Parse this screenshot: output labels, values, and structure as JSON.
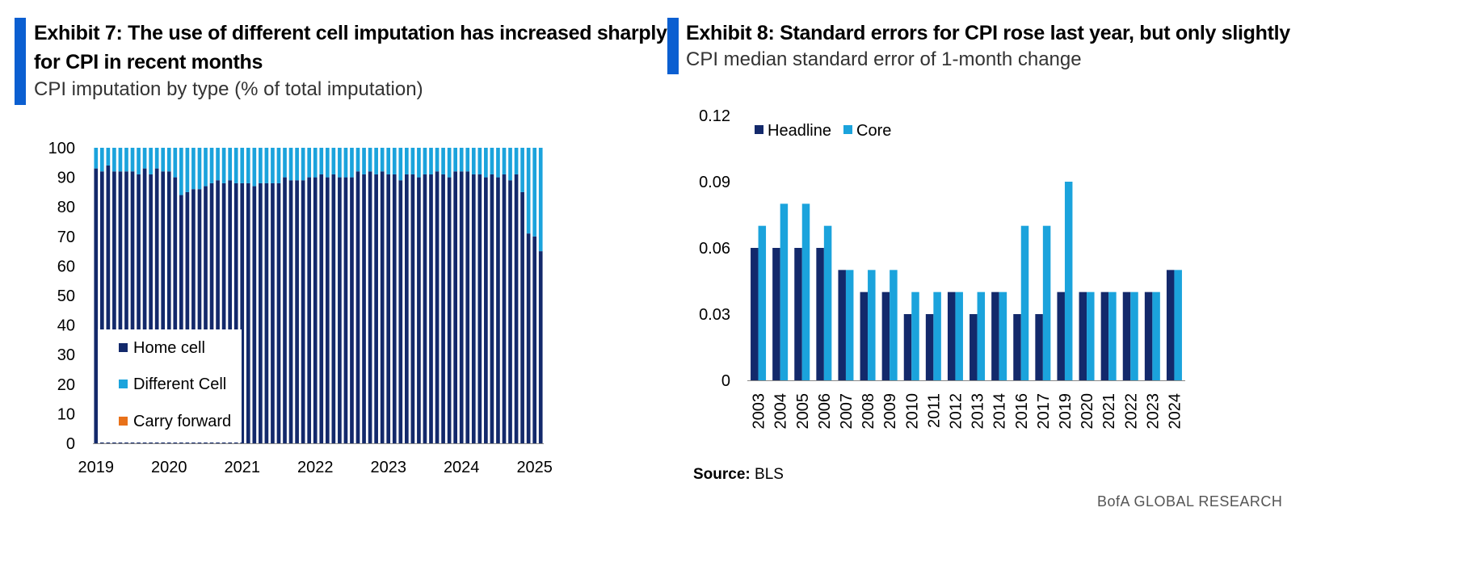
{
  "exhibit7": {
    "title_line1": "Exhibit 7: The use of different cell imputation has increased sharply",
    "title_line2": "for CPI in recent months",
    "subtitle": "CPI imputation by type (% of total imputation)"
  },
  "exhibit8": {
    "title": "Exhibit 8: Standard errors for CPI rose last year, but only slightly",
    "subtitle": "CPI median standard error of 1-month change"
  },
  "footer": {
    "source_label": "Source:",
    "source_value": "BLS",
    "brand": "BofA GLOBAL RESEARCH"
  },
  "colors": {
    "accent": "#0b5fd1",
    "home_cell": "#13296b",
    "different_cell": "#1ba3dc",
    "carry_forward": "#e8711a",
    "headline": "#13296b",
    "core": "#1ba3dc"
  },
  "chart_data": [
    {
      "type": "bar",
      "stacked": true,
      "ylim": [
        0,
        100
      ],
      "yticks": [
        0,
        10,
        20,
        30,
        40,
        50,
        60,
        70,
        80,
        90,
        100
      ],
      "xtick_labels": [
        "2019",
        "2020",
        "2021",
        "2022",
        "2023",
        "2024",
        "2025"
      ],
      "xtick_start_index": 0,
      "bars_per_year": 12,
      "legend_position": "bottom-left (inside)",
      "series": [
        {
          "name": "Home cell",
          "values": [
            93,
            92,
            94,
            92,
            92,
            92,
            92,
            91,
            93,
            91,
            93,
            92,
            92,
            90,
            84,
            85,
            86,
            86,
            87,
            88,
            89,
            88,
            89,
            88,
            88,
            88,
            87,
            88,
            88,
            88,
            88,
            90,
            89,
            89,
            89,
            90,
            90,
            91,
            90,
            91,
            90,
            90,
            90,
            92,
            91,
            92,
            91,
            92,
            91,
            91,
            89,
            91,
            91,
            90,
            91,
            91,
            92,
            91,
            90,
            92,
            92,
            92,
            91,
            91,
            90,
            91,
            90,
            91,
            89,
            91,
            85,
            71,
            70,
            65
          ]
        },
        {
          "name": "Different Cell",
          "values": [
            7,
            8,
            6,
            8,
            8,
            8,
            8,
            9,
            7,
            9,
            7,
            8,
            8,
            10,
            16,
            15,
            14,
            14,
            13,
            12,
            11,
            12,
            11,
            12,
            12,
            12,
            13,
            12,
            12,
            12,
            12,
            10,
            11,
            11,
            11,
            10,
            10,
            9,
            10,
            9,
            10,
            10,
            10,
            8,
            9,
            8,
            9,
            8,
            9,
            9,
            11,
            9,
            9,
            10,
            9,
            9,
            8,
            9,
            10,
            8,
            8,
            8,
            9,
            9,
            10,
            9,
            10,
            9,
            11,
            9,
            15,
            29,
            30,
            35
          ]
        },
        {
          "name": "Carry forward",
          "values": [
            0,
            0,
            0,
            0,
            0,
            0,
            0,
            0,
            0,
            0,
            0,
            0,
            0,
            0,
            0,
            0,
            0,
            0,
            0,
            0,
            0,
            0,
            0,
            0,
            0,
            0,
            0,
            0,
            0,
            0,
            0,
            0,
            0,
            0,
            0,
            0,
            0,
            0,
            0,
            0,
            0,
            0,
            0,
            0,
            0,
            0,
            0,
            0,
            0,
            0,
            0,
            0,
            0,
            0,
            0,
            0,
            0,
            0,
            0,
            0,
            0,
            0,
            0,
            0,
            0,
            0,
            0,
            0,
            0,
            0,
            0,
            0,
            0,
            0
          ]
        }
      ]
    },
    {
      "type": "bar",
      "categories": [
        "2003",
        "2004",
        "2005",
        "2006",
        "2007",
        "2008",
        "2009",
        "2010",
        "2011",
        "2012",
        "2013",
        "2014",
        "2016",
        "2017",
        "2019",
        "2020",
        "2021",
        "2022",
        "2023",
        "2024"
      ],
      "ylim": [
        0,
        0.12
      ],
      "yticks": [
        "0",
        "0.03",
        "0.06",
        "0.09",
        "0.12"
      ],
      "legend_position": "top-left",
      "series": [
        {
          "name": "Headline",
          "values": [
            0.06,
            0.06,
            0.06,
            0.06,
            0.05,
            0.04,
            0.04,
            0.03,
            0.03,
            0.04,
            0.03,
            0.04,
            0.03,
            0.03,
            0.04,
            0.04,
            0.04,
            0.04,
            0.04,
            0.05
          ]
        },
        {
          "name": "Core",
          "values": [
            0.07,
            0.08,
            0.08,
            0.07,
            0.05,
            0.05,
            0.05,
            0.04,
            0.04,
            0.04,
            0.04,
            0.04,
            0.07,
            0.07,
            0.09,
            0.04,
            0.04,
            0.04,
            0.04,
            0.05
          ]
        }
      ]
    }
  ]
}
